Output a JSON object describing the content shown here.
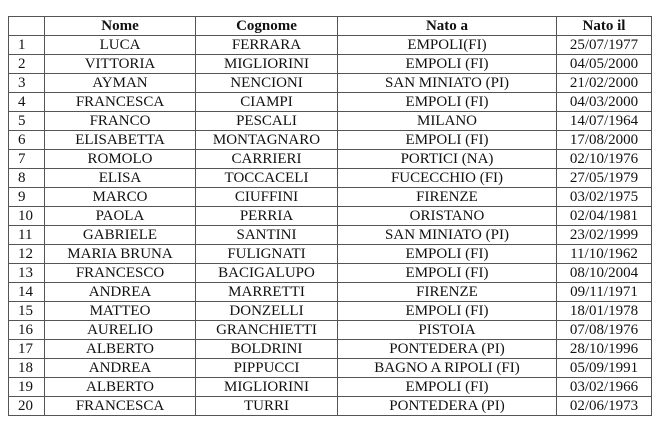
{
  "table": {
    "headers": [
      "",
      "Nome",
      "Cognome",
      "Nato a",
      "Nato il"
    ],
    "rows": [
      [
        "1",
        "LUCA",
        "FERRARA",
        "EMPOLI(FI)",
        "25/07/1977"
      ],
      [
        "2",
        "VITTORIA",
        "MIGLIORINI",
        "EMPOLI (FI)",
        "04/05/2000"
      ],
      [
        "3",
        "AYMAN",
        "NENCIONI",
        "SAN MINIATO (PI)",
        "21/02/2000"
      ],
      [
        "4",
        "FRANCESCA",
        "CIAMPI",
        "EMPOLI (FI)",
        "04/03/2000"
      ],
      [
        "5",
        "FRANCO",
        "PESCALI",
        "MILANO",
        "14/07/1964"
      ],
      [
        "6",
        "ELISABETTA",
        "MONTAGNARO",
        "EMPOLI (FI)",
        "17/08/2000"
      ],
      [
        "7",
        "ROMOLO",
        "CARRIERI",
        "PORTICI (NA)",
        "02/10/1976"
      ],
      [
        "8",
        "ELISA",
        "TOCCACELI",
        "FUCECCHIO (FI)",
        "27/05/1979"
      ],
      [
        "9",
        "MARCO",
        "CIUFFINI",
        "FIRENZE",
        "03/02/1975"
      ],
      [
        "10",
        "PAOLA",
        "PERRIA",
        "ORISTANO",
        "02/04/1981"
      ],
      [
        "11",
        "GABRIELE",
        "SANTINI",
        "SAN MINIATO (PI)",
        "23/02/1999"
      ],
      [
        "12",
        "MARIA BRUNA",
        "FULIGNATI",
        "EMPOLI (FI)",
        "11/10/1962"
      ],
      [
        "13",
        "FRANCESCO",
        "BACIGALUPO",
        "EMPOLI (FI)",
        "08/10/2004"
      ],
      [
        "14",
        "ANDREA",
        "MARRETTI",
        "FIRENZE",
        "09/11/1971"
      ],
      [
        "15",
        "MATTEO",
        "DONZELLI",
        "EMPOLI (FI)",
        "18/01/1978"
      ],
      [
        "16",
        "AURELIO",
        "GRANCHIETTI",
        "PISTOIA",
        "07/08/1976"
      ],
      [
        "17",
        "ALBERTO",
        "BOLDRINI",
        "PONTEDERA (PI)",
        "28/10/1996"
      ],
      [
        "18",
        "ANDREA",
        "PIPPUCCI",
        "BAGNO A RIPOLI (FI)",
        "05/09/1991"
      ],
      [
        "19",
        "ALBERTO",
        "MIGLIORINI",
        "EMPOLI (FI)",
        "03/02/1966"
      ],
      [
        "20",
        "FRANCESCA",
        "TURRI",
        "PONTEDERA (PI)",
        "02/06/1973"
      ]
    ]
  }
}
